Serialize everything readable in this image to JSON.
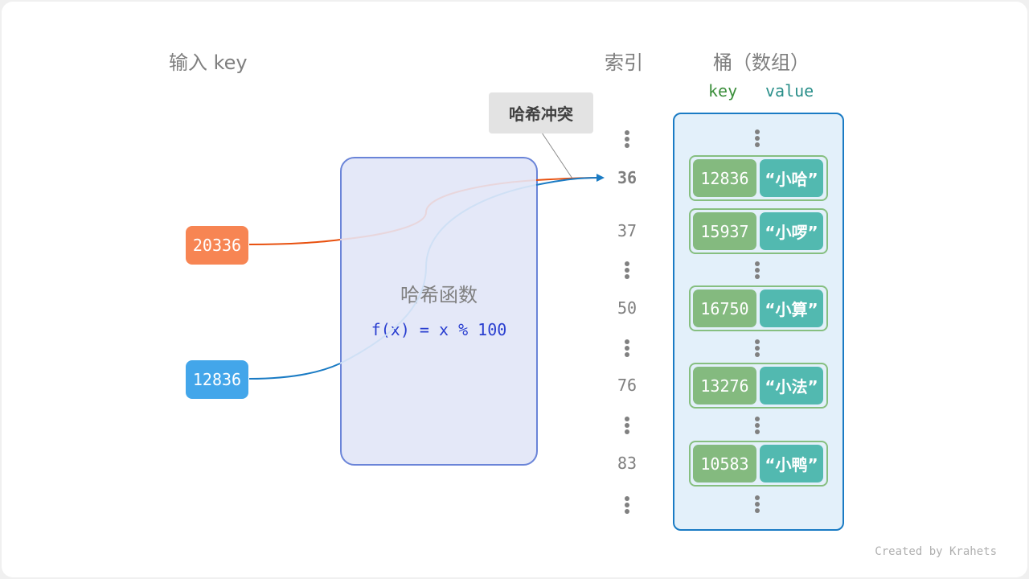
{
  "headers": {
    "input_key": "输入 key",
    "index": "索引",
    "bucket": "桶（数组）",
    "col_key": "key",
    "col_value": "value"
  },
  "callout": "哈希冲突",
  "hash_box": {
    "title": "哈希函数",
    "formula": "f(x) = x % 100"
  },
  "inputs": [
    {
      "value": "20336",
      "color": "#f78553"
    },
    {
      "value": "12836",
      "color": "#43a6ea"
    }
  ],
  "indices": [
    "36",
    "37",
    "50",
    "76",
    "83"
  ],
  "entries": [
    {
      "key": "12836",
      "value": "“小哈”"
    },
    {
      "key": "15937",
      "value": "“小啰”"
    },
    {
      "key": "16750",
      "value": "“小算”"
    },
    {
      "key": "13276",
      "value": "“小法”"
    },
    {
      "key": "10583",
      "value": "“小鸭”"
    }
  ],
  "credit": "Created by Krahets",
  "colors": {
    "orange_line": "#e8500e",
    "blue_line": "#1a7bc4",
    "bucket_bg": "#e3f0fa",
    "hash_bg": "#e4e8f8"
  }
}
